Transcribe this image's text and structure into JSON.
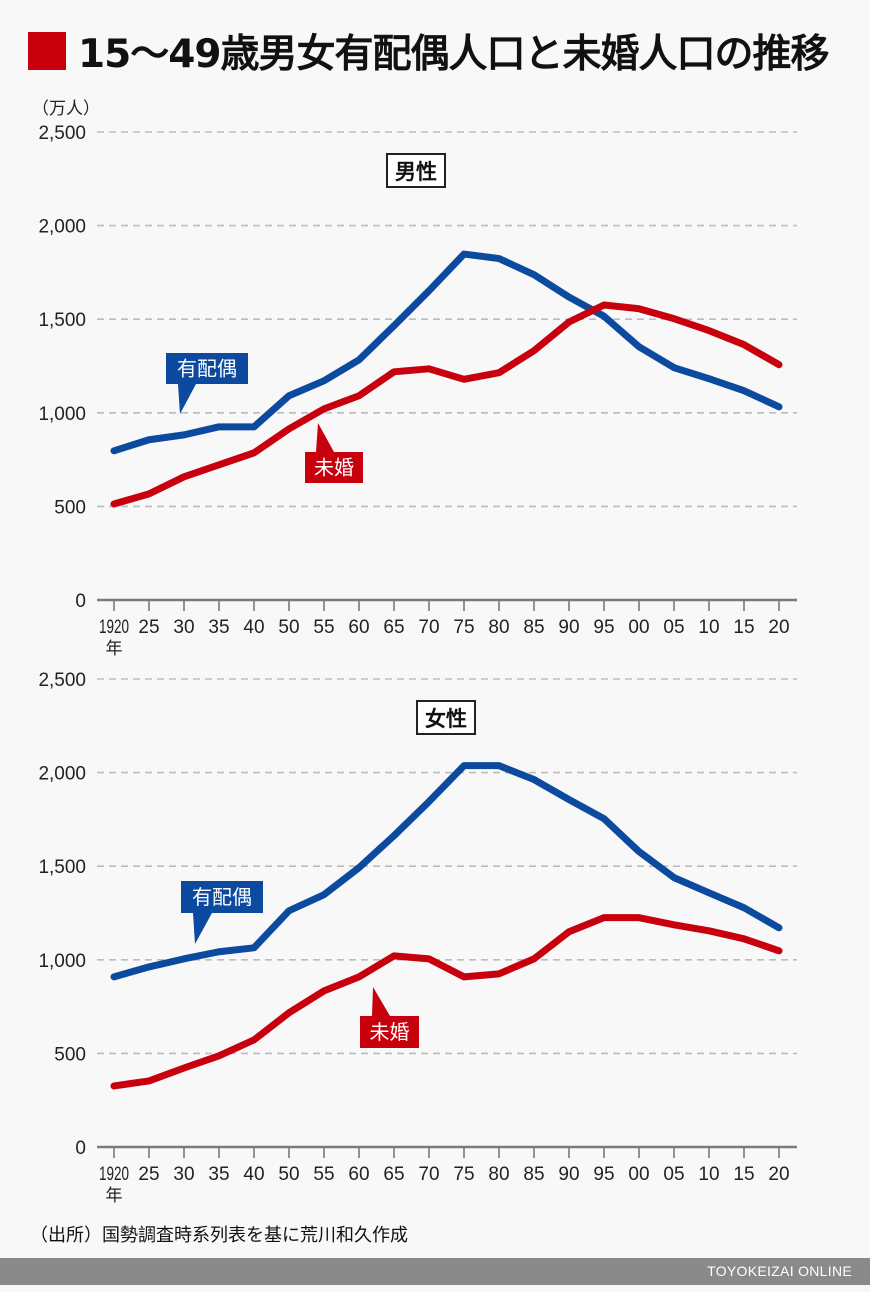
{
  "header": {
    "title": "15〜49歳男女有配偶人口と未婚人口の推移",
    "unit": "（万人）"
  },
  "colors": {
    "accent_red": "#c8000d",
    "married_blue": "#0b4a9e",
    "unmarried_red": "#c8000d",
    "grid": "#bdbdbd",
    "axis": "#7a7a7a",
    "footer_bg": "#8a8a8a"
  },
  "source": "（出所）国勢調査時系列表を基に荒川和久作成",
  "footer": {
    "brand": "TOYOKEIZAI ONLINE"
  },
  "chart_data": [
    {
      "type": "line",
      "title": "男性",
      "xlabel": "年",
      "ylabel": "万人",
      "ylim": [
        0,
        2500
      ],
      "yticks": [
        0,
        500,
        1000,
        1500,
        2000,
        2500
      ],
      "ytick_labels": [
        "0",
        "500",
        "1,000",
        "1,500",
        "2,000",
        "2,500"
      ],
      "grid": true,
      "categories": [
        "1920",
        "25",
        "30",
        "35",
        "40",
        "50",
        "55",
        "60",
        "65",
        "70",
        "75",
        "80",
        "85",
        "90",
        "95",
        "00",
        "05",
        "10",
        "15",
        "20"
      ],
      "first_category_suffix": "年",
      "series": [
        {
          "name": "有配偶",
          "color_key": "married_blue",
          "values": [
            797,
            856,
            882,
            925,
            925,
            1091,
            1171,
            1283,
            1465,
            1652,
            1848,
            1824,
            1738,
            1618,
            1516,
            1353,
            1241,
            1182,
            1118,
            1032
          ]
        },
        {
          "name": "未婚",
          "color_key": "unmarried_red",
          "values": [
            513,
            567,
            658,
            722,
            786,
            914,
            1021,
            1091,
            1219,
            1235,
            1179,
            1214,
            1332,
            1485,
            1576,
            1556,
            1503,
            1439,
            1364,
            1257
          ]
        }
      ],
      "annotations": [
        {
          "text": "有配偶",
          "series": "有配偶"
        },
        {
          "text": "未婚",
          "series": "未婚"
        }
      ]
    },
    {
      "type": "line",
      "title": "女性",
      "xlabel": "年",
      "ylabel": "万人",
      "ylim": [
        0,
        2500
      ],
      "yticks": [
        0,
        500,
        1000,
        1500,
        2000,
        2500
      ],
      "ytick_labels": [
        "0",
        "500",
        "1,000",
        "1,500",
        "2,000",
        "2,500"
      ],
      "grid": true,
      "categories": [
        "1920",
        "25",
        "30",
        "35",
        "40",
        "50",
        "55",
        "60",
        "65",
        "70",
        "75",
        "80",
        "85",
        "90",
        "95",
        "00",
        "05",
        "10",
        "15",
        "20"
      ],
      "first_category_suffix": "年",
      "series": [
        {
          "name": "有配偶",
          "color_key": "married_blue",
          "values": [
            909,
            962,
            1005,
            1043,
            1064,
            1262,
            1348,
            1492,
            1663,
            1845,
            2037,
            2037,
            1963,
            1856,
            1754,
            1578,
            1439,
            1358,
            1278,
            1171
          ]
        },
        {
          "name": "未婚",
          "color_key": "unmarried_red",
          "values": [
            326,
            353,
            422,
            487,
            572,
            717,
            834,
            909,
            1021,
            1005,
            909,
            925,
            1005,
            1150,
            1225,
            1225,
            1187,
            1155,
            1112,
            1048
          ]
        }
      ],
      "annotations": [
        {
          "text": "有配偶",
          "series": "有配偶"
        },
        {
          "text": "未婚",
          "series": "未婚"
        }
      ]
    }
  ]
}
